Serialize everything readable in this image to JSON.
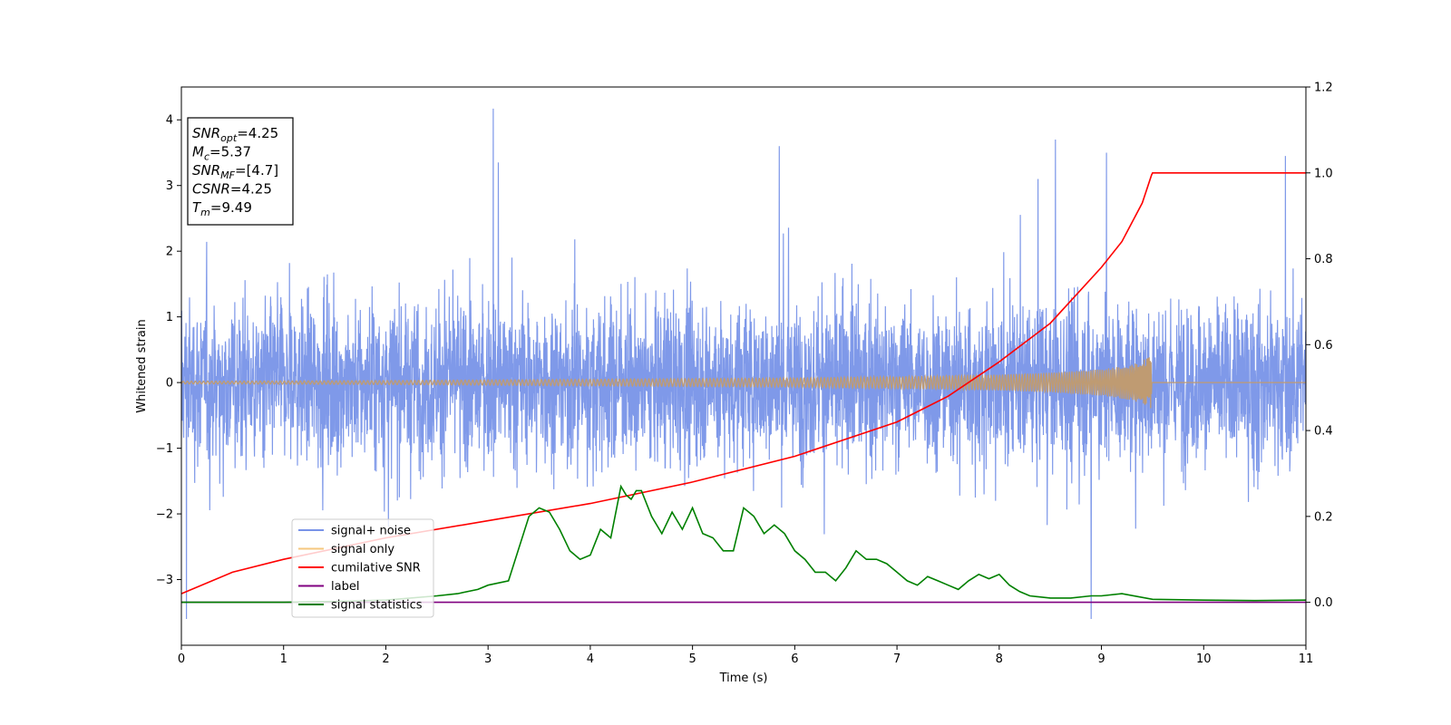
{
  "chart_data": {
    "type": "line",
    "xlabel": "Time (s)",
    "ylabel": "Whitened strain",
    "xlim": [
      0,
      11
    ],
    "ylim_left": [
      -4,
      4.5
    ],
    "ylim_right": [
      -0.1,
      1.2
    ],
    "x_ticks": [
      "0",
      "1",
      "2",
      "3",
      "4",
      "5",
      "6",
      "7",
      "8",
      "9",
      "10",
      "11"
    ],
    "y_ticks_left": [
      "−3",
      "−2",
      "−1",
      "0",
      "1",
      "2",
      "3",
      "4"
    ],
    "y_ticks_right": [
      "0.0",
      "0.2",
      "0.4",
      "0.6",
      "0.8",
      "1.0",
      "1.2"
    ],
    "grid": false,
    "legend_placement": "lower-left",
    "legend": [
      {
        "label": "signal+ noise",
        "color": "#7893e8"
      },
      {
        "label": "signal only",
        "color": "#f5c77e"
      },
      {
        "label": "cumilative SNR",
        "color": "#ff0000"
      },
      {
        "label": "label",
        "color": "#800080"
      },
      {
        "label": "signal statistics",
        "color": "#008000"
      }
    ],
    "annotation": [
      {
        "base": "SNR",
        "sub": "opt",
        "value": "=4.25"
      },
      {
        "base": "M",
        "sub": "c",
        "value": "=5.37"
      },
      {
        "base": "SNR",
        "sub": "MF",
        "value": "=[4.7]"
      },
      {
        "base": "CSNR",
        "sub": "",
        "value": "=4.25"
      },
      {
        "base": "T",
        "sub": "m",
        "value": "=9.49"
      }
    ],
    "series": [
      {
        "name": "signal+ noise",
        "axis": "left",
        "color": "#7893e8",
        "description_stats": {
          "typical_range": [
            -2,
            2.6
          ],
          "max": 4.17,
          "min": -3.6
        },
        "peaks": [
          {
            "x": 0.05,
            "y": -3.6
          },
          {
            "x": 3.05,
            "y": 4.17
          },
          {
            "x": 3.1,
            "y": 3.35
          },
          {
            "x": 5.85,
            "y": 3.6
          },
          {
            "x": 8.55,
            "y": 3.7
          },
          {
            "x": 8.9,
            "y": -3.6
          },
          {
            "x": 9.05,
            "y": 3.5
          },
          {
            "x": 10.8,
            "y": 3.45
          }
        ]
      },
      {
        "name": "signal only",
        "axis": "left",
        "color": "#f5c77e",
        "chirp_end_time": 9.49,
        "envelope": {
          "x": [
            0,
            2,
            4,
            6,
            7,
            8,
            8.5,
            9,
            9.3,
            9.49,
            9.5,
            11
          ],
          "y": [
            0.02,
            0.03,
            0.05,
            0.07,
            0.09,
            0.12,
            0.15,
            0.2,
            0.27,
            0.4,
            0.0,
            0.0
          ]
        }
      },
      {
        "name": "cumilative SNR",
        "axis": "right",
        "color": "#ff0000",
        "x": [
          0,
          0.5,
          1,
          2,
          3,
          4,
          5,
          6,
          7,
          7.5,
          8,
          8.5,
          9,
          9.2,
          9.4,
          9.49,
          9.5,
          11
        ],
        "y": [
          0.02,
          0.07,
          0.1,
          0.15,
          0.19,
          0.23,
          0.28,
          0.34,
          0.42,
          0.48,
          0.56,
          0.65,
          0.78,
          0.84,
          0.93,
          0.995,
          1.0,
          1.0
        ]
      },
      {
        "name": "label",
        "axis": "right",
        "color": "#800080",
        "x": [
          0,
          11
        ],
        "y": [
          0,
          0
        ]
      },
      {
        "name": "signal statistics",
        "axis": "right",
        "color": "#008000",
        "x": [
          0,
          0.5,
          1,
          1.5,
          2,
          2.5,
          2.7,
          2.9,
          3.0,
          3.2,
          3.4,
          3.5,
          3.6,
          3.7,
          3.8,
          3.9,
          4.0,
          4.1,
          4.2,
          4.3,
          4.35,
          4.4,
          4.45,
          4.5,
          4.6,
          4.7,
          4.8,
          4.9,
          5.0,
          5.1,
          5.2,
          5.3,
          5.4,
          5.5,
          5.6,
          5.7,
          5.8,
          5.9,
          6.0,
          6.1,
          6.2,
          6.3,
          6.4,
          6.5,
          6.6,
          6.7,
          6.8,
          6.9,
          7.0,
          7.1,
          7.2,
          7.3,
          7.4,
          7.5,
          7.6,
          7.7,
          7.8,
          7.9,
          8.0,
          8.1,
          8.2,
          8.3,
          8.5,
          8.7,
          8.9,
          9.0,
          9.2,
          9.5,
          10,
          10.5,
          11
        ],
        "y": [
          0,
          0,
          0,
          0.002,
          0.005,
          0.015,
          0.02,
          0.03,
          0.04,
          0.05,
          0.2,
          0.22,
          0.21,
          0.17,
          0.12,
          0.1,
          0.11,
          0.17,
          0.15,
          0.27,
          0.25,
          0.24,
          0.26,
          0.26,
          0.2,
          0.16,
          0.21,
          0.17,
          0.22,
          0.16,
          0.15,
          0.12,
          0.12,
          0.22,
          0.2,
          0.16,
          0.18,
          0.16,
          0.12,
          0.1,
          0.07,
          0.07,
          0.05,
          0.08,
          0.12,
          0.1,
          0.1,
          0.09,
          0.07,
          0.05,
          0.04,
          0.06,
          0.05,
          0.04,
          0.03,
          0.05,
          0.065,
          0.055,
          0.065,
          0.04,
          0.025,
          0.015,
          0.01,
          0.01,
          0.015,
          0.015,
          0.02,
          0.007,
          0.005,
          0.004,
          0.005
        ]
      }
    ]
  }
}
